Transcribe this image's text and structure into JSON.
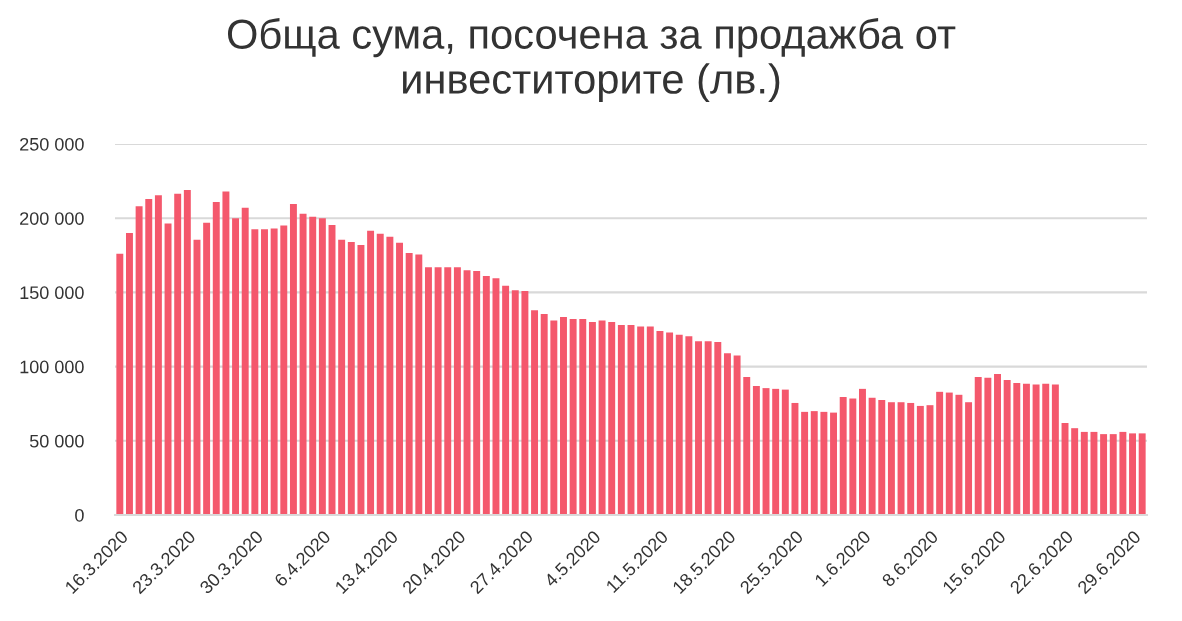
{
  "chart_data": {
    "type": "bar",
    "title": "Обща сума, посочена за продажба от\nинвеститорите (лв.)",
    "categories": [
      "16.3.2020",
      null,
      null,
      null,
      null,
      null,
      null,
      "23.3.2020",
      null,
      null,
      null,
      null,
      null,
      null,
      "30.3.2020",
      null,
      null,
      null,
      null,
      null,
      null,
      "6.4.2020",
      null,
      null,
      null,
      null,
      null,
      null,
      "13.4.2020",
      null,
      null,
      null,
      null,
      null,
      null,
      "20.4.2020",
      null,
      null,
      null,
      null,
      null,
      null,
      "27.4.2020",
      null,
      null,
      null,
      null,
      null,
      null,
      "4.5.2020",
      null,
      null,
      null,
      null,
      null,
      null,
      "11.5.2020",
      null,
      null,
      null,
      null,
      null,
      null,
      "18.5.2020",
      null,
      null,
      null,
      null,
      null,
      null,
      "25.5.2020",
      null,
      null,
      null,
      null,
      null,
      null,
      "1.6.2020",
      null,
      null,
      null,
      null,
      null,
      null,
      "8.6.2020",
      null,
      null,
      null,
      null,
      null,
      null,
      "15.6.2020",
      null,
      null,
      null,
      null,
      null,
      null,
      "22.6.2020",
      null,
      null,
      null,
      null,
      null,
      null,
      "29.6.2020",
      null
    ],
    "values": [
      176000,
      190000,
      208000,
      213000,
      215500,
      196500,
      216500,
      219000,
      185500,
      197000,
      211000,
      218000,
      200000,
      207000,
      192500,
      192500,
      193000,
      195000,
      209500,
      203000,
      201000,
      200000,
      195500,
      185500,
      184000,
      182000,
      191500,
      189500,
      187500,
      183500,
      176500,
      175500,
      167000,
      167000,
      167000,
      167000,
      165000,
      164500,
      161000,
      159500,
      154500,
      151500,
      151000,
      138000,
      135500,
      131000,
      133500,
      132000,
      132000,
      130000,
      131000,
      130000,
      128000,
      128000,
      127000,
      127000,
      124000,
      123000,
      121500,
      120500,
      117000,
      117000,
      116500,
      109000,
      107500,
      93000,
      87000,
      85500,
      85000,
      84500,
      75500,
      69500,
      70000,
      69500,
      69000,
      79500,
      78500,
      85000,
      79000,
      77500,
      76000,
      76000,
      75500,
      73500,
      74000,
      83000,
      82500,
      81000,
      76000,
      93000,
      92500,
      95000,
      91000,
      89000,
      88500,
      88000,
      88500,
      88000,
      62000,
      58500,
      56000,
      56000,
      54500,
      54500,
      56000,
      55000,
      55000
    ],
    "color": "#f4586c",
    "ylim": [
      0,
      250000
    ],
    "yticks": [
      0,
      {
        "value": 50000,
        "label": "50 000"
      },
      {
        "value": 100000,
        "label": "100 000"
      },
      {
        "value": 150000,
        "label": "150 000"
      },
      {
        "value": 200000,
        "label": "200 000"
      },
      {
        "value": 250000,
        "label": "250 000"
      }
    ],
    "grid": "y"
  }
}
